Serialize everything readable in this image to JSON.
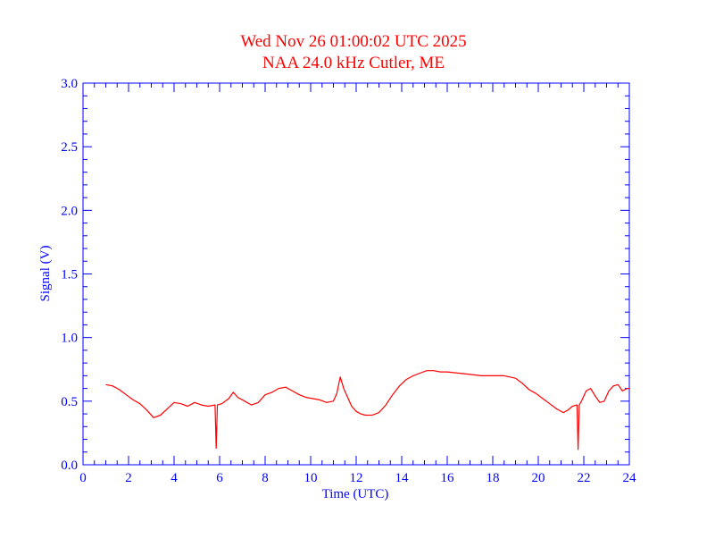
{
  "chart_data": {
    "type": "line",
    "title": "Wed Nov 26 01:00:02 UTC 2025",
    "subtitle": "NAA 24.0 kHz Cutler, ME",
    "xlabel": "Time (UTC)",
    "ylabel": "Signal (V)",
    "xlim": [
      0,
      24
    ],
    "ylim": [
      0.0,
      3.0
    ],
    "x_ticks": [
      0,
      2,
      4,
      6,
      8,
      10,
      12,
      14,
      16,
      18,
      20,
      22,
      24
    ],
    "x_tick_labels": [
      "0",
      "2",
      "4",
      "6",
      "8",
      "10",
      "12",
      "14",
      "16",
      "18",
      "20",
      "22",
      "24"
    ],
    "y_ticks": [
      0.0,
      0.5,
      1.0,
      1.5,
      2.0,
      2.5,
      3.0
    ],
    "y_tick_labels": [
      "0.0",
      "0.5",
      "1.0",
      "1.5",
      "2.0",
      "2.5",
      "3.0"
    ],
    "grid": false,
    "colors": {
      "axis": "#0000ff",
      "series": "#ff0000",
      "title": "#ff0000"
    },
    "series": [
      {
        "x": [
          1.0,
          1.3,
          1.6,
          1.9,
          2.2,
          2.5,
          2.8,
          3.1,
          3.4,
          3.7,
          4.0,
          4.3,
          4.6,
          4.9,
          5.2,
          5.5,
          5.8,
          5.85,
          5.9,
          6.1,
          6.4,
          6.6,
          6.8,
          7.1,
          7.4,
          7.7,
          8.0,
          8.3,
          8.6,
          8.9,
          9.2,
          9.5,
          9.8,
          10.1,
          10.4,
          10.7,
          11.0,
          11.15,
          11.3,
          11.45,
          11.6,
          11.8,
          12.0,
          12.2,
          12.4,
          12.7,
          13.0,
          13.3,
          13.6,
          13.9,
          14.2,
          14.5,
          14.8,
          15.1,
          15.4,
          15.7,
          16.0,
          16.5,
          17.0,
          17.5,
          18.0,
          18.5,
          19.0,
          19.3,
          19.6,
          19.9,
          20.2,
          20.5,
          20.8,
          21.1,
          21.3,
          21.5,
          21.7,
          21.75,
          21.8,
          21.9,
          22.1,
          22.3,
          22.5,
          22.7,
          22.9,
          23.1,
          23.3,
          23.5,
          23.7,
          23.9,
          24.0
        ],
        "y": [
          0.63,
          0.62,
          0.59,
          0.55,
          0.51,
          0.48,
          0.43,
          0.37,
          0.39,
          0.44,
          0.49,
          0.48,
          0.46,
          0.49,
          0.47,
          0.46,
          0.47,
          0.13,
          0.47,
          0.48,
          0.52,
          0.57,
          0.53,
          0.5,
          0.47,
          0.49,
          0.55,
          0.57,
          0.6,
          0.61,
          0.58,
          0.55,
          0.53,
          0.52,
          0.51,
          0.49,
          0.5,
          0.56,
          0.69,
          0.6,
          0.54,
          0.46,
          0.42,
          0.4,
          0.39,
          0.39,
          0.41,
          0.47,
          0.55,
          0.62,
          0.67,
          0.7,
          0.72,
          0.74,
          0.74,
          0.73,
          0.73,
          0.72,
          0.71,
          0.7,
          0.7,
          0.7,
          0.68,
          0.64,
          0.59,
          0.56,
          0.52,
          0.48,
          0.44,
          0.41,
          0.43,
          0.46,
          0.47,
          0.12,
          0.47,
          0.5,
          0.58,
          0.6,
          0.54,
          0.49,
          0.5,
          0.58,
          0.62,
          0.63,
          0.58,
          0.6,
          0.6
        ]
      }
    ]
  }
}
